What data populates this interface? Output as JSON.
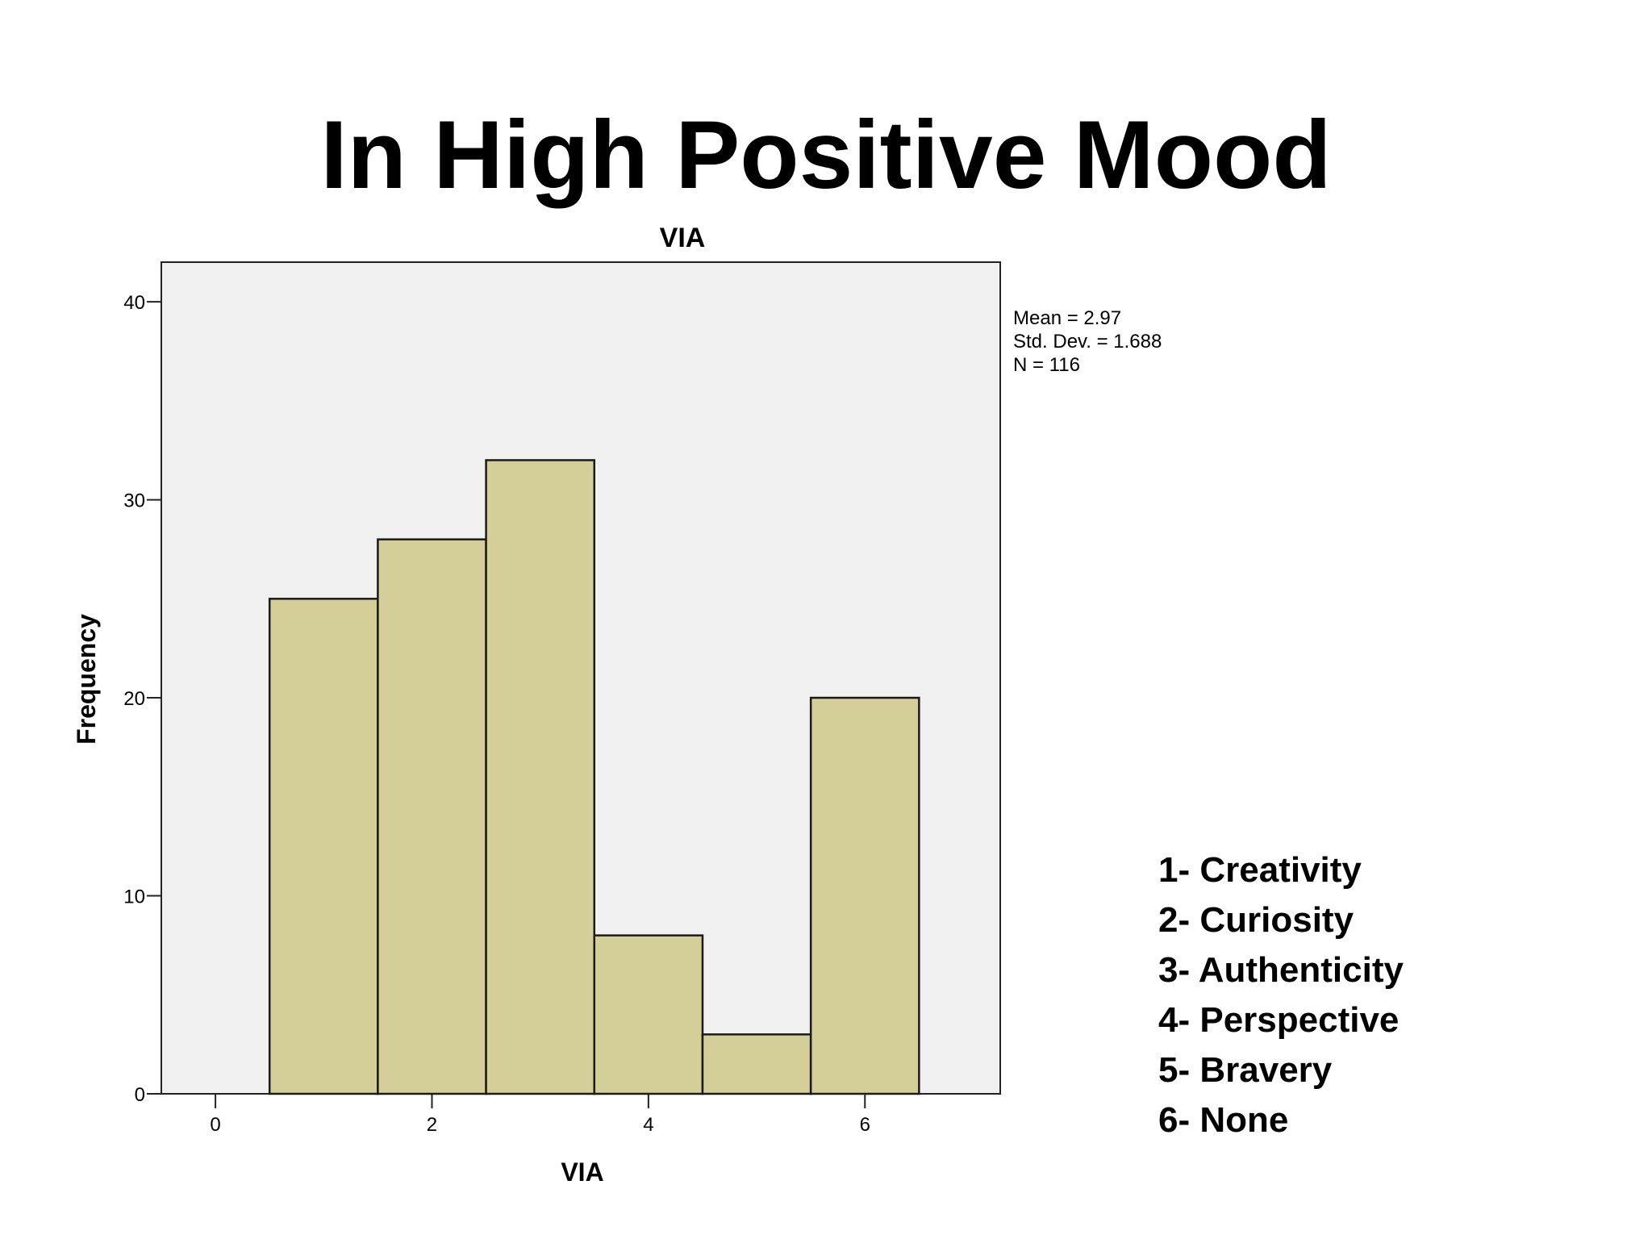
{
  "slide": {
    "title": "In High Positive Mood"
  },
  "chart_data": {
    "type": "bar",
    "title": "VIA",
    "xlabel": "VIA",
    "ylabel": "Frequency",
    "x_bin_centers": [
      1,
      2,
      3,
      4,
      5,
      6
    ],
    "bin_width": 1,
    "values": [
      25,
      28,
      32,
      8,
      3,
      20
    ],
    "xlim": [
      -0.5,
      7.25
    ],
    "ylim": [
      0,
      42
    ],
    "x_ticks": [
      0,
      2,
      4,
      6
    ],
    "y_ticks": [
      0,
      10,
      20,
      30,
      40
    ],
    "grid": false,
    "bar_color": "#d4cf99",
    "plot_background": "#f0f0f0",
    "stats": [
      "Mean = 2.97",
      "Std. Dev. = 1.688",
      "N = 116"
    ]
  },
  "legend": {
    "items": [
      "1- Creativity",
      "2- Curiosity",
      "3- Authenticity",
      "4- Perspective",
      "5- Bravery",
      "6- None"
    ]
  }
}
